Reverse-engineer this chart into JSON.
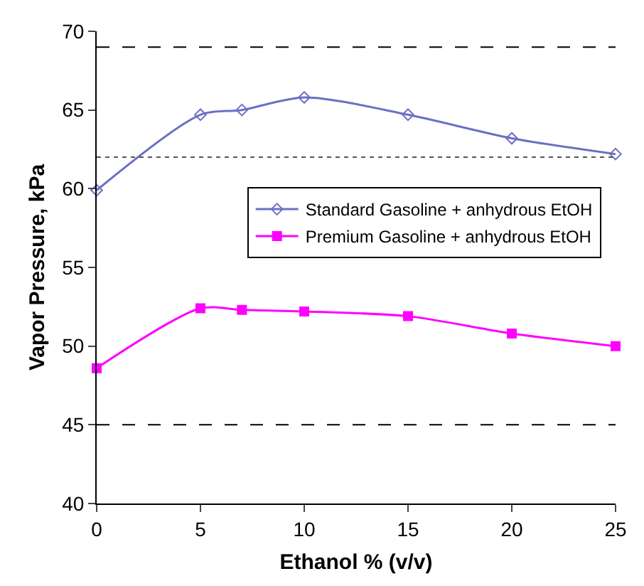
{
  "chart_data": {
    "type": "line",
    "xlabel": "Ethanol % (v/v)",
    "ylabel": "Vapor Pressure, kPa",
    "x": [
      0,
      5,
      7,
      10,
      15,
      20,
      25
    ],
    "series": [
      {
        "name": "Standard Gasoline + anhydrous EtOH",
        "color": "#6a70c4",
        "marker": "diamond",
        "values": [
          59.9,
          64.7,
          65.0,
          65.8,
          64.7,
          63.2,
          62.2
        ]
      },
      {
        "name": "Premium Gasoline + anhydrous EtOH",
        "color": "#ff00ff",
        "marker": "square",
        "values": [
          48.6,
          52.4,
          52.3,
          52.2,
          51.9,
          50.8,
          50.0
        ]
      }
    ],
    "xlim": [
      0,
      25
    ],
    "xticks": [
      0,
      5,
      10,
      15,
      20,
      25
    ],
    "ylim": [
      40,
      70
    ],
    "yticks": [
      40,
      45,
      50,
      55,
      60,
      65,
      70
    ],
    "ref_lines": [
      {
        "axis": "y",
        "value": 69,
        "color": "#000000",
        "line_style": "dashed"
      },
      {
        "axis": "y",
        "value": 62,
        "color": "#555555",
        "line_style": "dotted"
      },
      {
        "axis": "y",
        "value": 45,
        "color": "#000000",
        "line_style": "dashed"
      }
    ],
    "grid": false,
    "legend": "right",
    "line_style": "solid"
  }
}
